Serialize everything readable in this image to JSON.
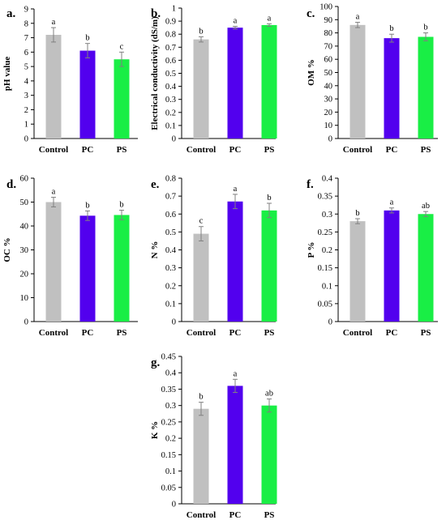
{
  "categories": [
    "Control",
    "PC",
    "PS"
  ],
  "bar_colors": [
    "#c0c0c0",
    "#5200ee",
    "#19ee45"
  ],
  "error_color": "#808080",
  "chart_data": [
    {
      "type": "bar",
      "panel_label": "a.",
      "ylabel": "pH value",
      "ylim": [
        0,
        9
      ],
      "yticks": [
        "0",
        "1",
        "2",
        "3",
        "4",
        "5",
        "6",
        "7",
        "8",
        "9"
      ],
      "categories": [
        "Control",
        "PC",
        "PS"
      ],
      "values": [
        7.2,
        6.1,
        5.5
      ],
      "errors": [
        0.5,
        0.5,
        0.5
      ],
      "letters": [
        "a",
        "b",
        "c"
      ]
    },
    {
      "type": "bar",
      "panel_label": "b.",
      "ylabel": "Electrical conductivity (dS/m)",
      "ylim": [
        0,
        1
      ],
      "yticks": [
        "0",
        "0.1",
        "0.2",
        "0.3",
        "0.4",
        "0.5",
        "0.6",
        "0.7",
        "0.8",
        "0.9",
        "1"
      ],
      "categories": [
        "Control",
        "PC",
        "PS"
      ],
      "values": [
        0.76,
        0.85,
        0.87
      ],
      "errors": [
        0.02,
        0.01,
        0.01
      ],
      "letters": [
        "b",
        "a",
        "a"
      ]
    },
    {
      "type": "bar",
      "panel_label": "c.",
      "ylabel": "OM %",
      "ylim": [
        0,
        100
      ],
      "yticks": [
        "0",
        "10",
        "20",
        "30",
        "40",
        "50",
        "60",
        "70",
        "80",
        "90",
        "100"
      ],
      "categories": [
        "Control",
        "PC",
        "PS"
      ],
      "values": [
        86,
        76,
        77
      ],
      "errors": [
        2,
        3,
        3
      ],
      "letters": [
        "a",
        "b",
        "b"
      ]
    },
    {
      "type": "bar",
      "panel_label": "d.",
      "ylabel": "OC %",
      "ylim": [
        0,
        60
      ],
      "yticks": [
        "0",
        "10",
        "20",
        "30",
        "40",
        "50",
        "60"
      ],
      "categories": [
        "Control",
        "PC",
        "PS"
      ],
      "values": [
        50,
        44.3,
        44.6
      ],
      "errors": [
        2,
        2,
        2
      ],
      "letters": [
        "a",
        "b",
        "b"
      ]
    },
    {
      "type": "bar",
      "panel_label": "e.",
      "ylabel": "N %",
      "ylim": [
        0,
        0.8
      ],
      "yticks": [
        "0",
        "0.1",
        "0.2",
        "0.3",
        "0.4",
        "0.5",
        "0.6",
        "0.7",
        "0.8"
      ],
      "categories": [
        "Control",
        "PC",
        "PS"
      ],
      "values": [
        0.49,
        0.67,
        0.62
      ],
      "errors": [
        0.04,
        0.04,
        0.04
      ],
      "letters": [
        "c",
        "a",
        "b"
      ]
    },
    {
      "type": "bar",
      "panel_label": "f.",
      "ylabel": "P %",
      "ylim": [
        0,
        0.4
      ],
      "yticks": [
        "0",
        "0.05",
        "0.1",
        "0.15",
        "0.2",
        "0.25",
        "0.3",
        "0.35",
        "0.4"
      ],
      "categories": [
        "Control",
        "PC",
        "PS"
      ],
      "values": [
        0.28,
        0.31,
        0.3
      ],
      "errors": [
        0.007,
        0.007,
        0.007
      ],
      "letters": [
        "b",
        "a",
        "ab"
      ]
    },
    {
      "type": "bar",
      "panel_label": "g.",
      "ylabel": "K %",
      "ylim": [
        0,
        0.45
      ],
      "yticks": [
        "0",
        "0.05",
        "0.1",
        "0.15",
        "0.2",
        "0.25",
        "0.3",
        "0.35",
        "0.4",
        "0.45"
      ],
      "categories": [
        "Control",
        "PC",
        "PS"
      ],
      "values": [
        0.29,
        0.36,
        0.3
      ],
      "errors": [
        0.02,
        0.02,
        0.02
      ],
      "letters": [
        "b",
        "a",
        "ab"
      ]
    }
  ]
}
